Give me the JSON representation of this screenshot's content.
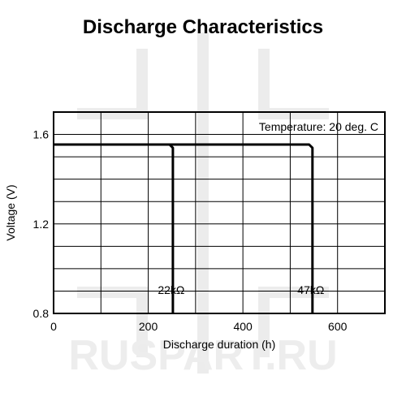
{
  "chart_data": {
    "type": "line",
    "title": "Discharge Characteristics",
    "xlabel": "Discharge duration (h)",
    "ylabel": "Voltage (V)",
    "xlim": [
      0,
      700
    ],
    "ylim": [
      0.8,
      1.7
    ],
    "x_ticks": [
      0,
      200,
      400,
      600
    ],
    "y_ticks": [
      0.8,
      1.2,
      1.6
    ],
    "grid": true,
    "annotation": "Temperature: 20 deg. C",
    "series": [
      {
        "name": "22kΩ",
        "color": "#000000",
        "points": [
          [
            0,
            1.555
          ],
          [
            245,
            1.555
          ],
          [
            252,
            1.54
          ],
          [
            252,
            0.8
          ]
        ]
      },
      {
        "name": "47kΩ",
        "color": "#000000",
        "points": [
          [
            0,
            1.555
          ],
          [
            540,
            1.555
          ],
          [
            547,
            1.54
          ],
          [
            547,
            0.8
          ]
        ]
      }
    ]
  },
  "watermark": "RUSPART.RU"
}
